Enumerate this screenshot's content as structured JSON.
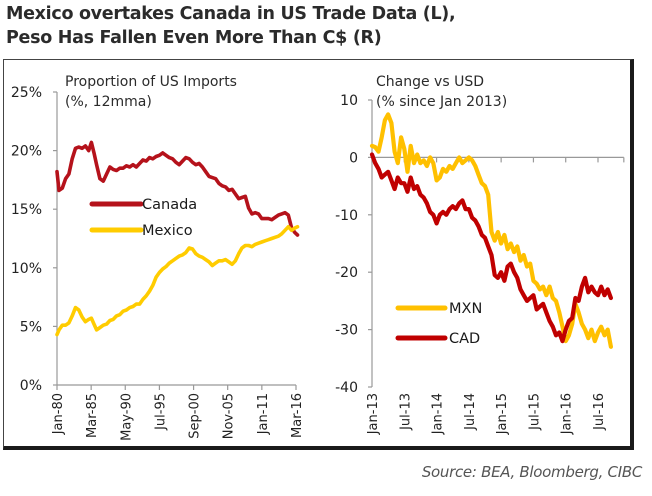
{
  "title_line1": "Mexico overtakes Canada in US Trade Data (L),",
  "title_line2": "Peso Has Fallen Even More Than C$ (R)",
  "source": "Source: BEA, Bloomberg, CIBC",
  "colors": {
    "canada": "#b5121b",
    "mexico": "#ffcc00",
    "cad": "#c00000",
    "mxn": "#ffc000",
    "axis": "#999999"
  },
  "chart_data": [
    {
      "type": "line",
      "title": "Proportion of US Imports",
      "subtitle": "(%, 12mma)",
      "ylabel": "",
      "xlabel": "",
      "ylim": [
        0,
        25
      ],
      "yticks": [
        0,
        5,
        10,
        15,
        20,
        25
      ],
      "ytick_labels": [
        "0%",
        "5%",
        "10%",
        "15%",
        "20%",
        "25%"
      ],
      "xlim": [
        1980.0,
        2016.2
      ],
      "xticks": [
        1980.0,
        1985.17,
        1990.33,
        1995.5,
        2000.67,
        2005.83,
        2011.0,
        2016.17
      ],
      "xtick_labels": [
        "Jan-80",
        "Mar-85",
        "May-90",
        "Jul-95",
        "Sep-00",
        "Nov-05",
        "Jan-11",
        "Mar-16"
      ],
      "legend": [
        "Canada",
        "Mexico"
      ],
      "legend_position": "center-left",
      "grid": false,
      "series": [
        {
          "name": "Canada",
          "x": [
            1980.0,
            1980.3,
            1980.8,
            1981.3,
            1981.8,
            1982.3,
            1982.8,
            1983.3,
            1983.8,
            1984.3,
            1984.8,
            1985.2,
            1985.6,
            1986.0,
            1986.5,
            1987.0,
            1987.5,
            1988.0,
            1988.5,
            1989.0,
            1989.5,
            1990.0,
            1990.5,
            1991.0,
            1991.5,
            1992.0,
            1992.5,
            1993.0,
            1993.5,
            1994.0,
            1994.5,
            1995.0,
            1995.5,
            1996.0,
            1996.5,
            1997.0,
            1997.5,
            1998.0,
            1998.5,
            1999.0,
            1999.5,
            2000.0,
            2000.5,
            2001.0,
            2001.5,
            2002.0,
            2002.5,
            2003.0,
            2003.5,
            2004.0,
            2004.5,
            2005.0,
            2005.5,
            2006.0,
            2006.5,
            2007.0,
            2007.5,
            2008.0,
            2008.5,
            2009.0,
            2009.5,
            2010.0,
            2010.5,
            2011.0,
            2011.5,
            2012.0,
            2012.5,
            2013.0,
            2013.5,
            2014.0,
            2014.5,
            2015.0,
            2015.5,
            2016.0,
            2016.4
          ],
          "values": [
            18.2,
            16.6,
            16.8,
            17.6,
            18.0,
            19.3,
            20.2,
            20.3,
            20.2,
            20.4,
            20.0,
            20.7,
            19.8,
            18.8,
            17.6,
            17.4,
            18.0,
            18.6,
            18.4,
            18.3,
            18.5,
            18.5,
            18.7,
            18.6,
            18.8,
            18.6,
            18.9,
            19.2,
            19.1,
            19.4,
            19.3,
            19.5,
            19.6,
            19.8,
            19.6,
            19.4,
            19.3,
            19.0,
            18.8,
            19.1,
            19.4,
            19.3,
            19.0,
            18.8,
            18.9,
            18.6,
            18.2,
            17.8,
            17.7,
            17.6,
            17.2,
            17.0,
            16.9,
            16.6,
            16.7,
            16.3,
            15.9,
            16.0,
            16.1,
            15.1,
            14.6,
            14.7,
            14.6,
            14.2,
            14.2,
            14.2,
            14.1,
            14.3,
            14.5,
            14.6,
            14.7,
            14.5,
            13.4,
            13.0,
            12.8
          ]
        },
        {
          "name": "Mexico",
          "x": [
            1980.0,
            1980.3,
            1980.8,
            1981.3,
            1981.8,
            1982.3,
            1982.8,
            1983.3,
            1983.8,
            1984.3,
            1984.8,
            1985.2,
            1985.6,
            1986.0,
            1986.5,
            1987.0,
            1987.5,
            1988.0,
            1988.5,
            1989.0,
            1989.5,
            1990.0,
            1990.5,
            1991.0,
            1991.5,
            1992.0,
            1992.5,
            1993.0,
            1993.5,
            1994.0,
            1994.5,
            1995.0,
            1995.5,
            1996.0,
            1996.5,
            1997.0,
            1997.5,
            1998.0,
            1998.5,
            1999.0,
            1999.5,
            2000.0,
            2000.5,
            2001.0,
            2001.5,
            2002.0,
            2002.5,
            2003.0,
            2003.5,
            2004.0,
            2004.5,
            2005.0,
            2005.5,
            2006.0,
            2006.5,
            2007.0,
            2007.5,
            2008.0,
            2008.5,
            2009.0,
            2009.5,
            2010.0,
            2010.5,
            2011.0,
            2011.5,
            2012.0,
            2012.5,
            2013.0,
            2013.5,
            2014.0,
            2014.5,
            2015.0,
            2015.5,
            2016.0,
            2016.4
          ],
          "values": [
            4.3,
            4.7,
            5.1,
            5.1,
            5.3,
            5.9,
            6.6,
            6.4,
            5.8,
            5.4,
            5.6,
            5.7,
            5.2,
            4.7,
            4.9,
            5.1,
            5.2,
            5.5,
            5.6,
            5.9,
            6.0,
            6.3,
            6.4,
            6.6,
            6.7,
            6.9,
            6.9,
            7.3,
            7.6,
            8.0,
            8.5,
            9.2,
            9.6,
            9.9,
            10.1,
            10.4,
            10.6,
            10.8,
            11.0,
            11.1,
            11.3,
            11.7,
            11.6,
            11.2,
            11.0,
            10.9,
            10.7,
            10.5,
            10.2,
            10.4,
            10.6,
            10.6,
            10.7,
            10.5,
            10.3,
            10.6,
            11.2,
            11.7,
            11.9,
            11.9,
            11.8,
            12.0,
            12.1,
            12.2,
            12.3,
            12.4,
            12.5,
            12.6,
            12.7,
            12.9,
            13.2,
            13.5,
            13.2,
            13.4,
            13.5
          ]
        }
      ]
    },
    {
      "type": "line",
      "title": "Change vs USD",
      "subtitle": "(% since Jan 2013)",
      "ylabel": "",
      "xlabel": "",
      "ylim": [
        -40,
        10
      ],
      "yticks": [
        -40,
        -30,
        -20,
        -10,
        0,
        10
      ],
      "ytick_labels": [
        "-40",
        "-30",
        "-20",
        "-10",
        "0",
        "10"
      ],
      "xlim": [
        2013.0,
        2016.9
      ],
      "xticks": [
        2013.0,
        2013.5,
        2014.0,
        2014.5,
        2015.0,
        2015.5,
        2016.0,
        2016.5
      ],
      "xtick_labels": [
        "Jan-13",
        "Jul-13",
        "Jan-14",
        "Jul-14",
        "Jan-15",
        "Jul-15",
        "Jan-16",
        "Jul-16"
      ],
      "legend": [
        "MXN",
        "CAD"
      ],
      "legend_position": "bottom-left",
      "grid": false,
      "series": [
        {
          "name": "MXN",
          "x": [
            2013.0,
            2013.05,
            2013.1,
            2013.15,
            2013.2,
            2013.25,
            2013.3,
            2013.35,
            2013.4,
            2013.45,
            2013.5,
            2013.55,
            2013.6,
            2013.65,
            2013.7,
            2013.75,
            2013.8,
            2013.85,
            2013.9,
            2013.95,
            2014.0,
            2014.05,
            2014.1,
            2014.15,
            2014.2,
            2014.25,
            2014.3,
            2014.35,
            2014.4,
            2014.45,
            2014.5,
            2014.55,
            2014.6,
            2014.65,
            2014.7,
            2014.75,
            2014.8,
            2014.85,
            2014.9,
            2014.95,
            2015.0,
            2015.05,
            2015.1,
            2015.15,
            2015.2,
            2015.25,
            2015.3,
            2015.35,
            2015.4,
            2015.45,
            2015.5,
            2015.55,
            2015.6,
            2015.65,
            2015.7,
            2015.75,
            2015.8,
            2015.85,
            2015.9,
            2015.95,
            2016.0,
            2016.05,
            2016.1,
            2016.15,
            2016.2,
            2016.25,
            2016.3,
            2016.35,
            2016.4,
            2016.45,
            2016.5,
            2016.55,
            2016.6,
            2016.65,
            2016.7
          ],
          "values": [
            2.0,
            1.8,
            1.0,
            3.5,
            6.5,
            7.5,
            6.0,
            1.0,
            -1.0,
            3.5,
            1.5,
            -2.5,
            2.0,
            -1.0,
            0.5,
            -1.0,
            -0.5,
            -1.5,
            0.0,
            -1.0,
            -4.0,
            -3.5,
            -2.0,
            -2.5,
            -1.5,
            -2.0,
            -1.0,
            0.0,
            -1.0,
            -0.5,
            0.0,
            -0.5,
            -1.5,
            -3.0,
            -4.5,
            -5.0,
            -6.5,
            -13.0,
            -14.5,
            -13.0,
            -15.0,
            -13.5,
            -16.0,
            -15.0,
            -16.5,
            -15.5,
            -18.0,
            -17.0,
            -19.0,
            -18.5,
            -21.5,
            -22.0,
            -23.0,
            -22.5,
            -24.0,
            -22.5,
            -24.5,
            -25.0,
            -27.0,
            -29.5,
            -32.0,
            -31.0,
            -29.0,
            -25.5,
            -27.0,
            -29.0,
            -30.0,
            -31.5,
            -30.0,
            -32.0,
            -30.5,
            -29.5,
            -31.0,
            -30.0,
            -33.0
          ]
        },
        {
          "name": "CAD",
          "x": [
            2013.0,
            2013.05,
            2013.1,
            2013.15,
            2013.2,
            2013.25,
            2013.3,
            2013.35,
            2013.4,
            2013.45,
            2013.5,
            2013.55,
            2013.6,
            2013.65,
            2013.7,
            2013.75,
            2013.8,
            2013.85,
            2013.9,
            2013.95,
            2014.0,
            2014.05,
            2014.1,
            2014.15,
            2014.2,
            2014.25,
            2014.3,
            2014.35,
            2014.4,
            2014.45,
            2014.5,
            2014.55,
            2014.6,
            2014.65,
            2014.7,
            2014.75,
            2014.8,
            2014.85,
            2014.9,
            2014.95,
            2015.0,
            2015.05,
            2015.1,
            2015.15,
            2015.2,
            2015.25,
            2015.3,
            2015.35,
            2015.4,
            2015.45,
            2015.5,
            2015.55,
            2015.6,
            2015.65,
            2015.7,
            2015.75,
            2015.8,
            2015.85,
            2015.9,
            2015.95,
            2016.0,
            2016.05,
            2016.1,
            2016.15,
            2016.2,
            2016.25,
            2016.3,
            2016.35,
            2016.4,
            2016.45,
            2016.5,
            2016.55,
            2016.6,
            2016.65,
            2016.7
          ],
          "values": [
            0.5,
            -1.0,
            -2.0,
            -3.5,
            -3.0,
            -2.5,
            -4.0,
            -5.5,
            -3.5,
            -4.5,
            -4.5,
            -6.0,
            -3.5,
            -5.5,
            -5.0,
            -6.5,
            -7.0,
            -8.0,
            -9.5,
            -10.0,
            -11.5,
            -10.0,
            -9.5,
            -10.0,
            -9.0,
            -8.5,
            -9.0,
            -8.0,
            -7.5,
            -9.0,
            -9.0,
            -10.5,
            -11.0,
            -12.0,
            -13.5,
            -14.0,
            -15.5,
            -17.0,
            -20.5,
            -21.0,
            -20.0,
            -21.5,
            -19.0,
            -18.5,
            -20.0,
            -21.0,
            -23.0,
            -24.0,
            -25.0,
            -24.5,
            -24.0,
            -26.5,
            -26.0,
            -25.5,
            -27.0,
            -28.5,
            -29.5,
            -31.0,
            -30.5,
            -32.0,
            -30.0,
            -28.5,
            -28.0,
            -24.5,
            -25.0,
            -22.5,
            -21.0,
            -23.5,
            -22.5,
            -23.5,
            -24.0,
            -22.5,
            -24.0,
            -23.0,
            -24.5
          ]
        }
      ]
    }
  ]
}
